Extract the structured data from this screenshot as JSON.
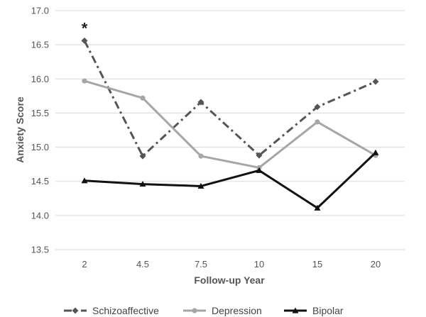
{
  "chart_data": {
    "type": "line",
    "categories": [
      "2",
      "4.5",
      "7.5",
      "10",
      "15",
      "20"
    ],
    "xlabel": "Follow-up Year",
    "ylabel": "Anxiety Score",
    "ylim": [
      13.5,
      17.0
    ],
    "yticks": [
      "13.5",
      "14.0",
      "14.5",
      "15.0",
      "15.5",
      "16.0",
      "16.5",
      "17.0"
    ],
    "grid": "horizontal",
    "legend": "bottom",
    "series": [
      {
        "name": "Schizoaffective",
        "values": [
          16.56,
          14.87,
          15.66,
          14.88,
          15.59,
          15.96
        ],
        "color": "#555555",
        "dash": "dash-dot",
        "marker": "diamond"
      },
      {
        "name": "Depression",
        "values": [
          15.97,
          15.72,
          14.87,
          14.7,
          15.37,
          14.88
        ],
        "color": "#a6a6a6",
        "dash": "solid",
        "marker": "circle"
      },
      {
        "name": "Bipolar",
        "values": [
          14.51,
          14.46,
          14.43,
          14.66,
          14.11,
          14.92
        ],
        "color": "#111111",
        "dash": "solid",
        "marker": "triangle"
      }
    ],
    "annotations": [
      {
        "text": "*",
        "category": "2",
        "series": "Schizoaffective"
      }
    ]
  }
}
